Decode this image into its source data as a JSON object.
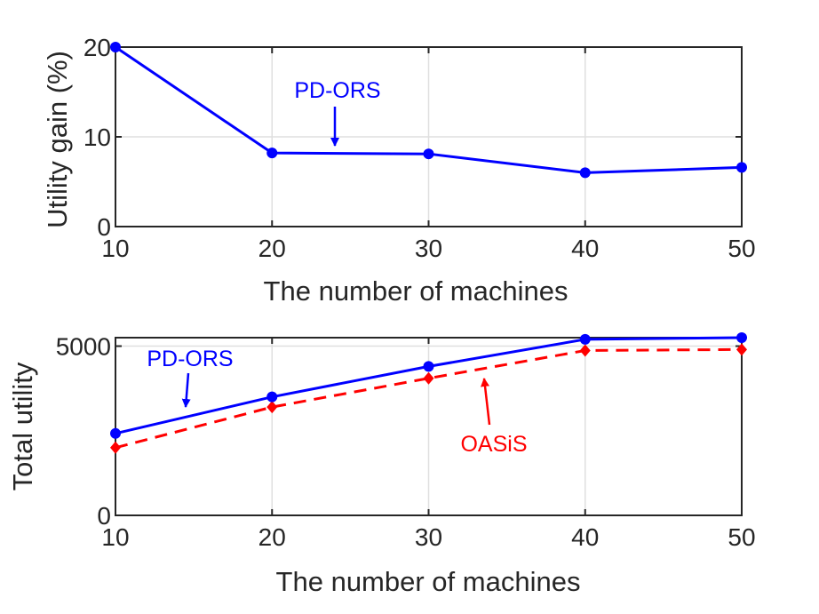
{
  "chart_data": [
    {
      "type": "line",
      "title": "",
      "xlabel": "The number of machines",
      "ylabel": "Utility gain (%)",
      "x": [
        10,
        20,
        30,
        40,
        50
      ],
      "xlim": [
        10,
        50
      ],
      "ylim": [
        0,
        20
      ],
      "xticks": [
        10,
        20,
        30,
        40,
        50
      ],
      "yticks": [
        0,
        10,
        20
      ],
      "xtick_labels": [
        "10",
        "20",
        "30",
        "40",
        "50"
      ],
      "ytick_labels": [
        "0",
        "10",
        "20"
      ],
      "grid": true,
      "series": [
        {
          "name": "PD-ORS",
          "values": [
            20,
            8.2,
            8.1,
            6.0,
            6.6
          ],
          "color": "#0000ff",
          "marker": "circle",
          "line": "solid"
        }
      ],
      "annotations": [
        {
          "text": "PD-ORS",
          "color": "#0000ff",
          "points_to": [
            24,
            8.2
          ]
        }
      ]
    },
    {
      "type": "line",
      "title": "",
      "xlabel": "The number of machines",
      "ylabel": "Total utility",
      "x": [
        10,
        20,
        30,
        40,
        50
      ],
      "xlim": [
        10,
        50
      ],
      "ylim": [
        0,
        5250
      ],
      "xticks": [
        10,
        20,
        30,
        40,
        50
      ],
      "yticks": [
        0,
        5000
      ],
      "xtick_labels": [
        "10",
        "20",
        "30",
        "40",
        "50"
      ],
      "ytick_labels": [
        "0",
        "5000"
      ],
      "grid": true,
      "series": [
        {
          "name": "PD-ORS",
          "values": [
            2420,
            3500,
            4400,
            5200,
            5250
          ],
          "color": "#0000ff",
          "marker": "circle",
          "line": "solid"
        },
        {
          "name": "OASiS",
          "values": [
            2000,
            3200,
            4050,
            4870,
            4900
          ],
          "color": "#ff0000",
          "marker": "diamond",
          "line": "dashed"
        }
      ],
      "annotations": [
        {
          "text": "PD-ORS",
          "color": "#0000ff",
          "points_to": [
            14.5,
            3250
          ]
        },
        {
          "text": "OASiS",
          "color": "#ff0000",
          "points_to": [
            33.5,
            4050
          ]
        }
      ]
    }
  ]
}
